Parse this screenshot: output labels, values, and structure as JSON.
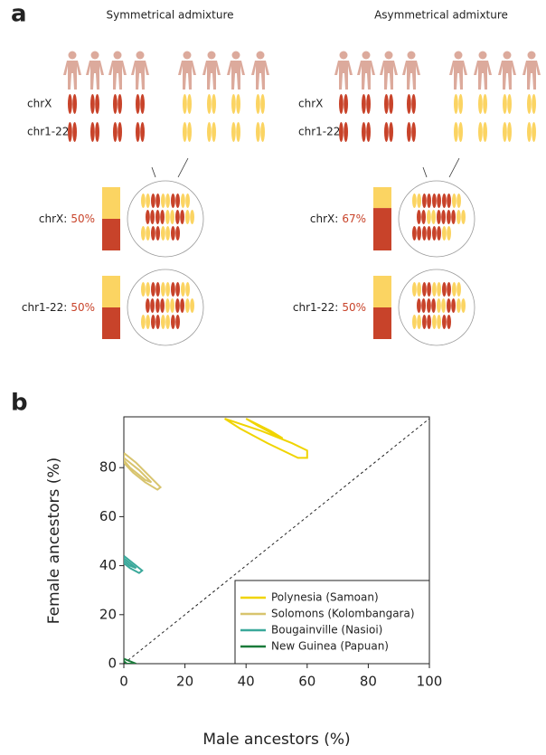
{
  "panel_a": {
    "label": "a",
    "diagrams": [
      {
        "title": "Symmetrical admixture",
        "chromosomes": [
          "chrX",
          "chr1-22"
        ],
        "rows": [
          {
            "label": "chrX:",
            "value": 50,
            "value_label": "50%"
          },
          {
            "label": "chr1-22:",
            "value": 50,
            "value_label": "50%"
          }
        ]
      },
      {
        "title": "Asymmetrical admixture",
        "chromosomes": [
          "chrX",
          "chr1-22"
        ],
        "rows": [
          {
            "label": "chrX:",
            "value": 67,
            "value_label": "67%"
          },
          {
            "label": "chr1-22:",
            "value": 50,
            "value_label": "50%"
          }
        ]
      }
    ]
  },
  "chart_data": {
    "type": "contour",
    "label": "b",
    "xlabel": "Male ancestors (%)",
    "ylabel": "Female ancestors (%)",
    "xlim": [
      0,
      100
    ],
    "ylim": [
      0,
      100
    ],
    "xticks": [
      0,
      20,
      40,
      60,
      80,
      100
    ],
    "yticks": [
      0,
      20,
      40,
      60,
      80
    ],
    "legend": "lower right",
    "series": [
      {
        "name": "Polynesia (Samoan)",
        "color": "#f0d400",
        "x": [
          33,
          45,
          55,
          60,
          60,
          57,
          47,
          38,
          33,
          null,
          40,
          48,
          52,
          50,
          44,
          40
        ],
        "y": [
          100,
          95,
          90,
          87,
          84,
          84,
          90,
          96,
          100,
          null,
          100,
          95,
          92,
          93,
          97,
          100
        ]
      },
      {
        "name": "Solomons (Kolombangara)",
        "color": "#d8c46e",
        "x": [
          0,
          4,
          8,
          12,
          11,
          7,
          3,
          0,
          0,
          null,
          0,
          5,
          9,
          7,
          2,
          0
        ],
        "y": [
          86,
          82,
          77,
          72,
          71,
          74,
          78,
          82,
          86,
          null,
          84,
          79,
          74,
          75,
          80,
          83
        ]
      },
      {
        "name": "Bougainville (Nasioi)",
        "color": "#3aa89a",
        "x": [
          0,
          3,
          6,
          5,
          2,
          0,
          0,
          null,
          0,
          4,
          2,
          0
        ],
        "y": [
          44,
          41,
          38,
          37,
          39,
          41,
          44,
          null,
          43,
          39,
          40,
          42
        ]
      },
      {
        "name": "New Guinea (Papuan)",
        "color": "#1a7a3a",
        "x": [
          0,
          2,
          4,
          1,
          0,
          0
        ],
        "y": [
          2,
          1,
          0,
          0,
          1,
          2
        ]
      }
    ]
  }
}
